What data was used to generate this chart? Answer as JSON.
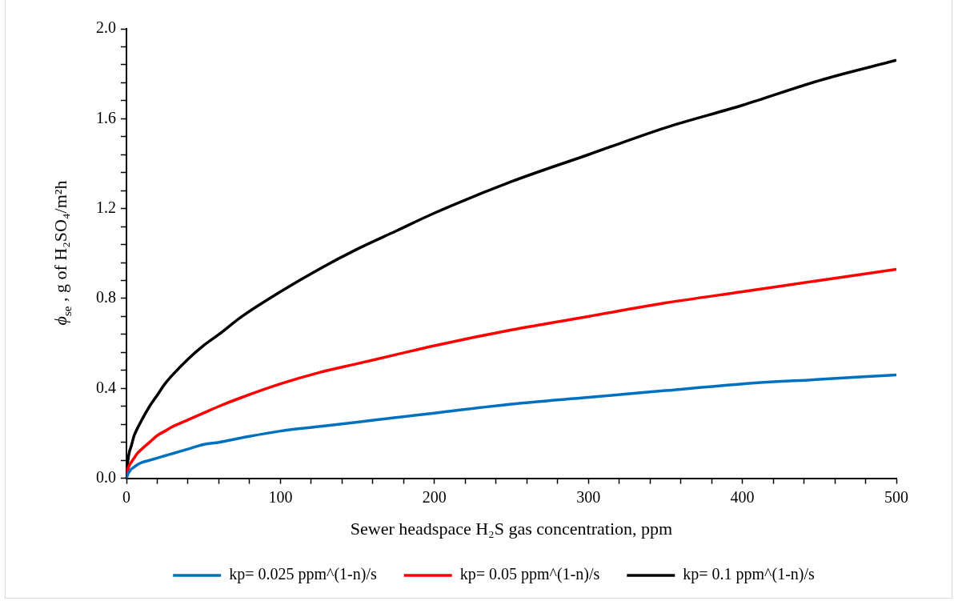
{
  "chart_data": {
    "type": "line",
    "xlabel": "Sewer headspace H₂S gas concentration, ppm",
    "ylabel": "ϕ$_{se}$ , g of H₂SO₄/m²h",
    "x": [
      0,
      1,
      2,
      3,
      5,
      7,
      10,
      15,
      20,
      25,
      30,
      40,
      50,
      60,
      75,
      100,
      125,
      150,
      175,
      200,
      250,
      300,
      350,
      400,
      450,
      500
    ],
    "series": [
      {
        "name": "kp= 0.025 ppm^(1-n)/s",
        "color": "#0070c0",
        "values": [
          0,
          0.02,
          0.03,
          0.04,
          0.05,
          0.06,
          0.07,
          0.08,
          0.09,
          0.1,
          0.11,
          0.13,
          0.15,
          0.16,
          0.18,
          0.21,
          0.23,
          0.25,
          0.27,
          0.29,
          0.33,
          0.36,
          0.39,
          0.42,
          0.44,
          0.46
        ]
      },
      {
        "name": "kp= 0.05 ppm^(1-n)/s",
        "color": "#ff0000",
        "values": [
          0,
          0.04,
          0.06,
          0.07,
          0.09,
          0.11,
          0.13,
          0.16,
          0.19,
          0.21,
          0.23,
          0.26,
          0.29,
          0.32,
          0.36,
          0.42,
          0.47,
          0.51,
          0.55,
          0.59,
          0.66,
          0.72,
          0.78,
          0.83,
          0.88,
          0.93
        ]
      },
      {
        "name": "kp= 0.1 ppm^(1-n)/s",
        "color": "#000000",
        "values": [
          0,
          0.08,
          0.12,
          0.14,
          0.19,
          0.22,
          0.26,
          0.32,
          0.37,
          0.42,
          0.46,
          0.53,
          0.59,
          0.64,
          0.72,
          0.83,
          0.93,
          1.02,
          1.1,
          1.18,
          1.32,
          1.44,
          1.56,
          1.66,
          1.77,
          1.86
        ]
      }
    ],
    "xlim": [
      0,
      500
    ],
    "ylim": [
      0,
      2
    ],
    "xticks": [
      0,
      {
        "value": 20,
        "label": null
      },
      {
        "value": 40,
        "label": null
      },
      {
        "value": 60,
        "label": null
      },
      {
        "value": 80,
        "label": null
      },
      100,
      {
        "value": 120,
        "label": null
      },
      {
        "value": 140,
        "label": null
      },
      {
        "value": 160,
        "label": null
      },
      {
        "value": 180,
        "label": null
      },
      200,
      {
        "value": 220,
        "label": null
      },
      {
        "value": 240,
        "label": null
      },
      {
        "value": 260,
        "label": null
      },
      {
        "value": 280,
        "label": null
      },
      300,
      {
        "value": 320,
        "label": null
      },
      {
        "value": 340,
        "label": null
      },
      {
        "value": 360,
        "label": null
      },
      {
        "value": 380,
        "label": null
      },
      400,
      {
        "value": 420,
        "label": null
      },
      {
        "value": 440,
        "label": null
      },
      {
        "value": 460,
        "label": null
      },
      {
        "value": 480,
        "label": null
      },
      500
    ],
    "yticks": [
      {
        "value": 0,
        "label": "0.0"
      },
      {
        "value": 0.08,
        "label": null
      },
      {
        "value": 0.16,
        "label": null
      },
      {
        "value": 0.24,
        "label": null
      },
      {
        "value": 0.32,
        "label": null
      },
      {
        "value": 0.4,
        "label": "0.4"
      },
      {
        "value": 0.48,
        "label": null
      },
      {
        "value": 0.56,
        "label": null
      },
      {
        "value": 0.64,
        "label": null
      },
      {
        "value": 0.72,
        "label": null
      },
      {
        "value": 0.8,
        "label": "0.8"
      },
      {
        "value": 0.88,
        "label": null
      },
      {
        "value": 0.96,
        "label": null
      },
      {
        "value": 1.04,
        "label": null
      },
      {
        "value": 1.12,
        "label": null
      },
      {
        "value": 1.2,
        "label": "1.2"
      },
      {
        "value": 1.28,
        "label": null
      },
      {
        "value": 1.36,
        "label": null
      },
      {
        "value": 1.44,
        "label": null
      },
      {
        "value": 1.52,
        "label": null
      },
      {
        "value": 1.6,
        "label": "1.6"
      },
      {
        "value": 1.68,
        "label": null
      },
      {
        "value": 1.76,
        "label": null
      },
      {
        "value": 1.84,
        "label": null
      },
      {
        "value": 1.92,
        "label": null
      },
      {
        "value": 2,
        "label": "2.0"
      }
    ],
    "grid": false,
    "legend": "bottom",
    "marker": "none",
    "line_style": "solid"
  }
}
